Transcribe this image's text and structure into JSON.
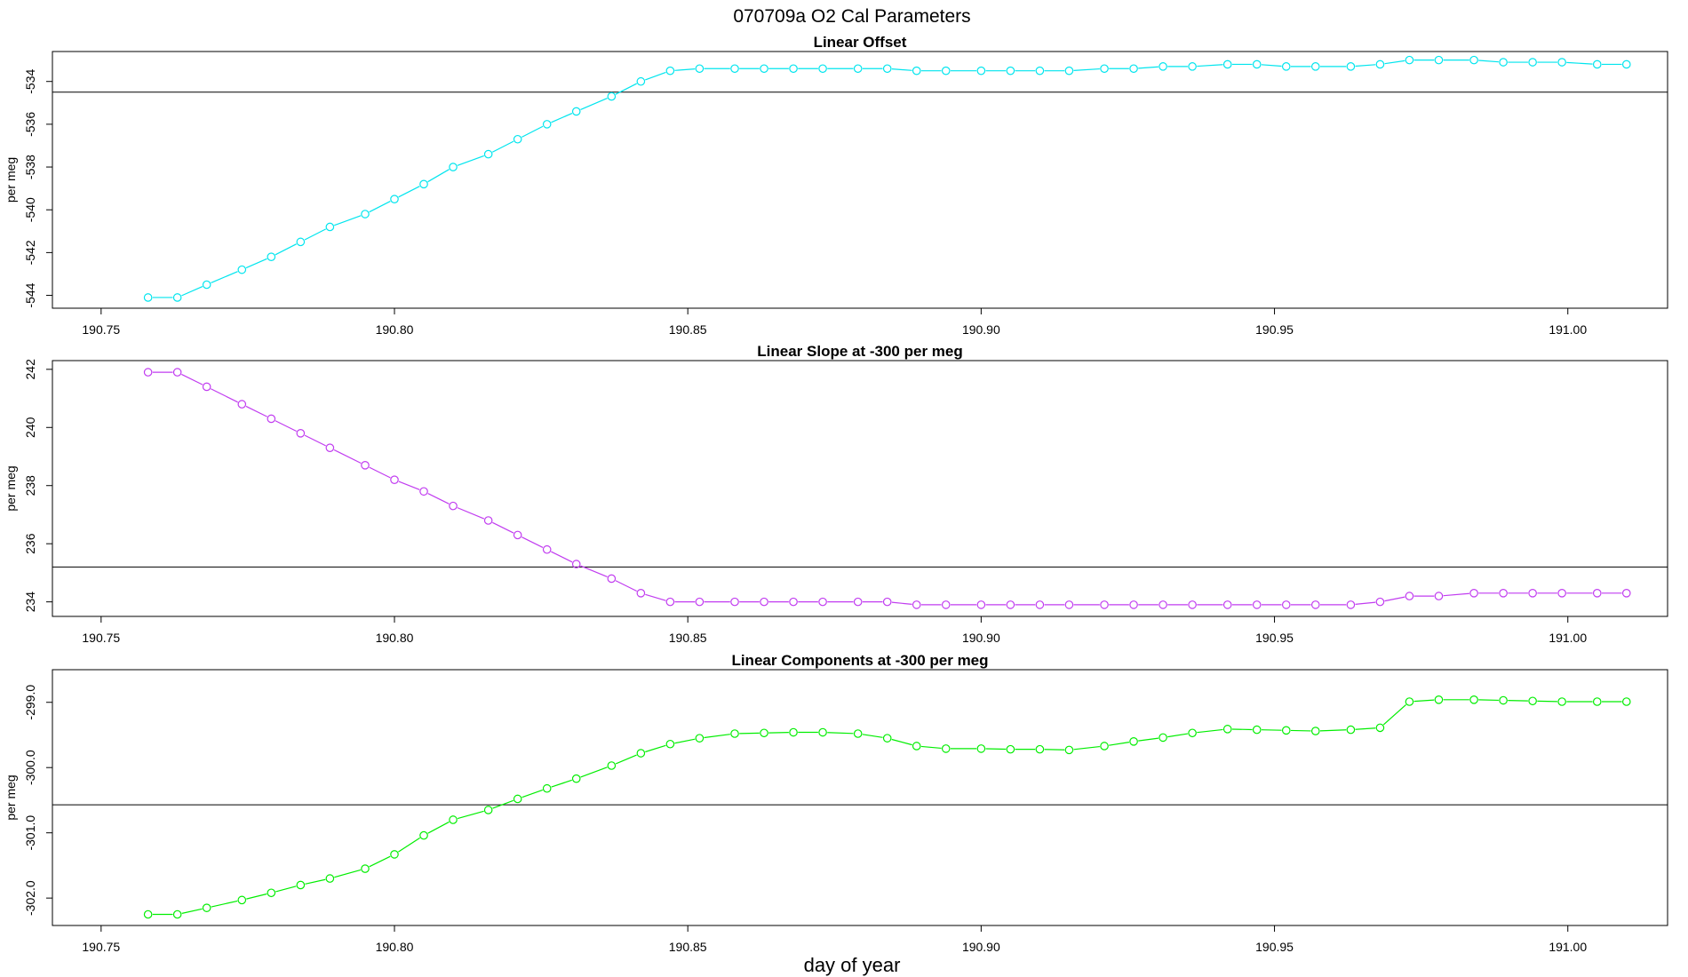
{
  "figure": {
    "title": "070709a   O2 Cal Parameters",
    "xlabel": "day of year"
  },
  "chart_data": [
    {
      "type": "line",
      "title": "Linear Offset",
      "ylabel": "per meg",
      "color": "#00e5ee",
      "xlim": [
        190.7417,
        191.017
      ],
      "ylim": [
        -544.6,
        -532.6
      ],
      "xticks": [
        190.75,
        190.8,
        190.85,
        190.9,
        190.95,
        191.0
      ],
      "xtick_labels": [
        "190.75",
        "190.80",
        "190.85",
        "190.90",
        "190.95",
        "191.00"
      ],
      "yticks": [
        -544,
        -542,
        -540,
        -538,
        -536,
        -534
      ],
      "ytick_labels": [
        "-544",
        "-542",
        "-540",
        "-538",
        "-536",
        "-534"
      ],
      "reference_line": -534.5,
      "x": [
        190.758,
        190.763,
        190.768,
        190.774,
        190.779,
        190.784,
        190.789,
        190.795,
        190.8,
        190.805,
        190.81,
        190.816,
        190.821,
        190.826,
        190.831,
        190.837,
        190.842,
        190.847,
        190.852,
        190.858,
        190.863,
        190.868,
        190.873,
        190.879,
        190.884,
        190.889,
        190.894,
        190.9,
        190.905,
        190.91,
        190.915,
        190.921,
        190.926,
        190.931,
        190.936,
        190.942,
        190.947,
        190.952,
        190.957,
        190.963,
        190.968,
        190.973,
        190.978,
        190.984,
        190.989,
        190.994,
        190.999,
        191.005,
        191.01
      ],
      "y": [
        -544.1,
        -544.1,
        -543.5,
        -542.8,
        -542.2,
        -541.5,
        -540.8,
        -540.2,
        -539.5,
        -538.8,
        -538.0,
        -537.4,
        -536.7,
        -536.0,
        -535.4,
        -534.7,
        -534.0,
        -533.5,
        -533.4,
        -533.4,
        -533.4,
        -533.4,
        -533.4,
        -533.4,
        -533.4,
        -533.5,
        -533.5,
        -533.5,
        -533.5,
        -533.5,
        -533.5,
        -533.4,
        -533.4,
        -533.3,
        -533.3,
        -533.2,
        -533.2,
        -533.3,
        -533.3,
        -533.3,
        -533.2,
        -533.0,
        -533.0,
        -533.0,
        -533.1,
        -533.1,
        -533.1,
        -533.2,
        -533.2
      ]
    },
    {
      "type": "line",
      "title": "Linear Slope at -300 per meg",
      "ylabel": "per meg",
      "color": "#c13cf0",
      "xlim": [
        190.7417,
        191.017
      ],
      "ylim": [
        233.5,
        242.3
      ],
      "xticks": [
        190.75,
        190.8,
        190.85,
        190.9,
        190.95,
        191.0
      ],
      "xtick_labels": [
        "190.75",
        "190.80",
        "190.85",
        "190.90",
        "190.95",
        "191.00"
      ],
      "yticks": [
        234,
        236,
        238,
        240,
        242
      ],
      "ytick_labels": [
        "234",
        "236",
        "238",
        "240",
        "242"
      ],
      "reference_line": 235.2,
      "x": [
        190.758,
        190.763,
        190.768,
        190.774,
        190.779,
        190.784,
        190.789,
        190.795,
        190.8,
        190.805,
        190.81,
        190.816,
        190.821,
        190.826,
        190.831,
        190.837,
        190.842,
        190.847,
        190.852,
        190.858,
        190.863,
        190.868,
        190.873,
        190.879,
        190.884,
        190.889,
        190.894,
        190.9,
        190.905,
        190.91,
        190.915,
        190.921,
        190.926,
        190.931,
        190.936,
        190.942,
        190.947,
        190.952,
        190.957,
        190.963,
        190.968,
        190.973,
        190.978,
        190.984,
        190.989,
        190.994,
        190.999,
        191.005,
        191.01
      ],
      "y": [
        241.9,
        241.9,
        241.4,
        240.8,
        240.3,
        239.8,
        239.3,
        238.7,
        238.2,
        237.8,
        237.3,
        236.8,
        236.3,
        235.8,
        235.3,
        234.8,
        234.3,
        234.0,
        234.0,
        234.0,
        234.0,
        234.0,
        234.0,
        234.0,
        234.0,
        233.9,
        233.9,
        233.9,
        233.9,
        233.9,
        233.9,
        233.9,
        233.9,
        233.9,
        233.9,
        233.9,
        233.9,
        233.9,
        233.9,
        233.9,
        234.0,
        234.2,
        234.2,
        234.3,
        234.3,
        234.3,
        234.3,
        234.3,
        234.3
      ]
    },
    {
      "type": "line",
      "title": "Linear Components at -300 per meg",
      "ylabel": "per meg",
      "color": "#00ee00",
      "xlim": [
        190.7417,
        191.017
      ],
      "ylim": [
        -302.42,
        -298.5
      ],
      "xticks": [
        190.75,
        190.8,
        190.85,
        190.9,
        190.95,
        191.0
      ],
      "xtick_labels": [
        "190.75",
        "190.80",
        "190.85",
        "190.90",
        "190.95",
        "191.00"
      ],
      "yticks": [
        -302.0,
        -301.0,
        -300.0,
        -299.0
      ],
      "ytick_labels": [
        "-302.0",
        "-301.0",
        "-300.0",
        "-299.0"
      ],
      "reference_line": -300.57,
      "x": [
        190.758,
        190.763,
        190.768,
        190.774,
        190.779,
        190.784,
        190.789,
        190.795,
        190.8,
        190.805,
        190.81,
        190.816,
        190.821,
        190.826,
        190.831,
        190.837,
        190.842,
        190.847,
        190.852,
        190.858,
        190.863,
        190.868,
        190.873,
        190.879,
        190.884,
        190.889,
        190.894,
        190.9,
        190.905,
        190.91,
        190.915,
        190.921,
        190.926,
        190.931,
        190.936,
        190.942,
        190.947,
        190.952,
        190.957,
        190.963,
        190.968,
        190.973,
        190.978,
        190.984,
        190.989,
        190.994,
        190.999,
        191.005,
        191.01
      ],
      "y": [
        -302.25,
        -302.25,
        -302.15,
        -302.03,
        -301.92,
        -301.8,
        -301.7,
        -301.55,
        -301.33,
        -301.04,
        -300.8,
        -300.65,
        -300.48,
        -300.32,
        -300.17,
        -299.97,
        -299.78,
        -299.64,
        -299.55,
        -299.48,
        -299.47,
        -299.46,
        -299.46,
        -299.48,
        -299.55,
        -299.67,
        -299.71,
        -299.71,
        -299.72,
        -299.72,
        -299.73,
        -299.67,
        -299.6,
        -299.54,
        -299.47,
        -299.41,
        -299.42,
        -299.43,
        -299.44,
        -299.42,
        -299.39,
        -298.99,
        -298.96,
        -298.96,
        -298.97,
        -298.98,
        -298.99,
        -298.99,
        -298.99
      ]
    }
  ]
}
